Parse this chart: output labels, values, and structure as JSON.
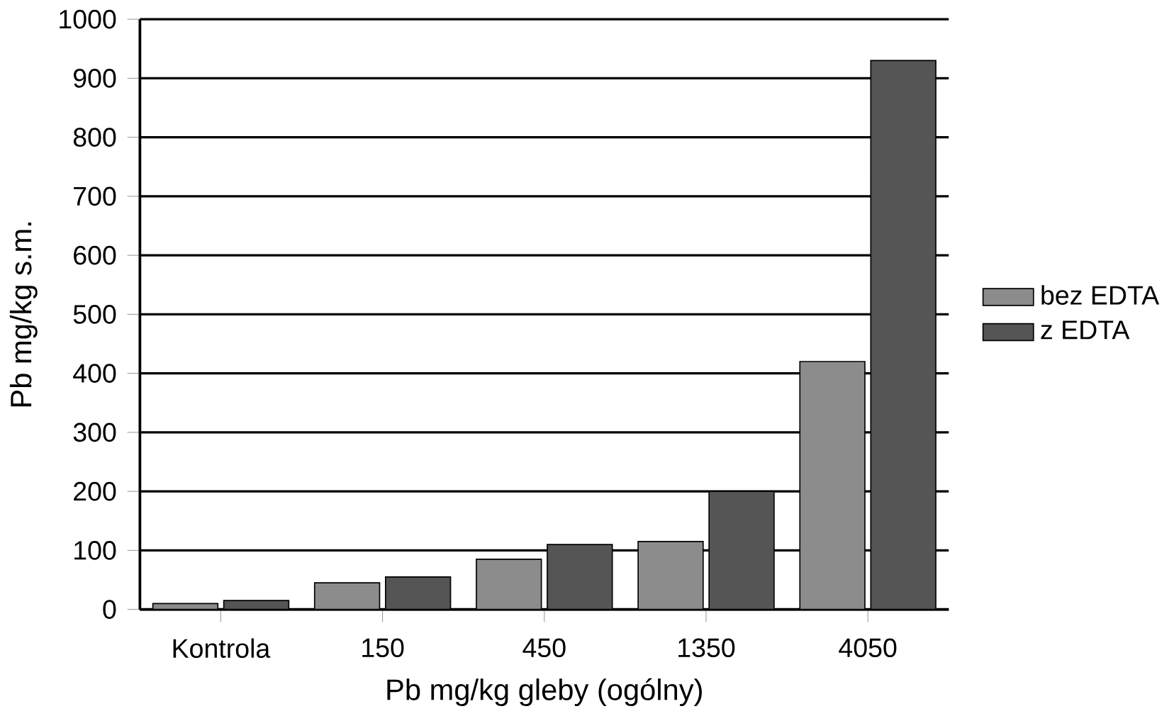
{
  "chart_data": {
    "type": "bar",
    "xlabel": "Pb mg/kg gleby (ogólny)",
    "ylabel": "Pb mg/kg s.m.",
    "categories": [
      "Kontrola",
      "150",
      "450",
      "1350",
      "4050"
    ],
    "series": [
      {
        "name": "bez EDTA",
        "color": "#8c8c8c",
        "values": [
          10,
          45,
          85,
          115,
          420
        ]
      },
      {
        "name": "z EDTA",
        "color": "#555555",
        "values": [
          15,
          55,
          110,
          200,
          930
        ]
      }
    ],
    "ylim": [
      0,
      1000
    ],
    "yticks": [
      0,
      100,
      200,
      300,
      400,
      500,
      600,
      700,
      800,
      900,
      1000
    ],
    "grid": "y",
    "legend": "right"
  }
}
